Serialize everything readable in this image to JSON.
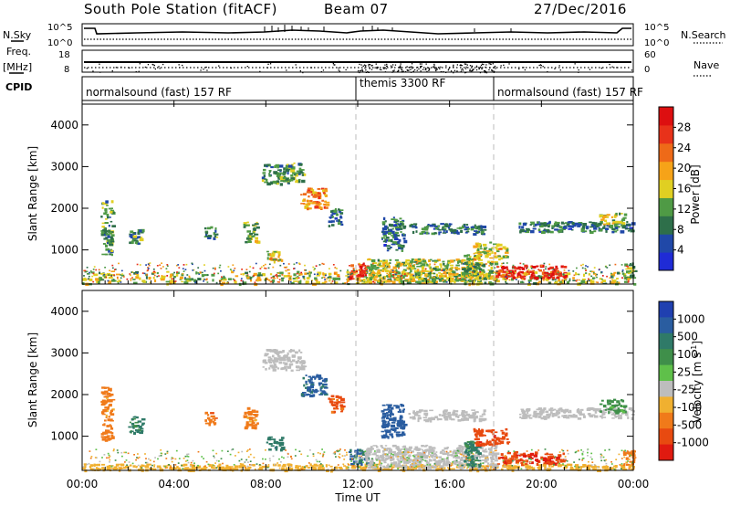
{
  "header": {
    "station": "South Pole Station (fitACF)",
    "beam": "Beam 07",
    "date": "27/Dec/2016"
  },
  "side_labels": {
    "nsky": "N.Sky",
    "freq_1": "Freq.",
    "freq_2": "[MHz]",
    "cpid": "CPID",
    "nsearch": "N.Search",
    "nave": "Nave"
  },
  "top_panels": {
    "nsky_ticks": [
      "10^5",
      "10^0"
    ],
    "nsearch_ticks": [
      "10^5",
      "10^0"
    ],
    "freq_ticks": [
      "18",
      "8"
    ],
    "nave_ticks": [
      "60",
      "0"
    ]
  },
  "cpid_segments": [
    {
      "label": "normalsound (fast) 157 RF",
      "start": 0,
      "end": 12
    },
    {
      "label": "themis 3300 RF",
      "start": 12,
      "end": 18
    },
    {
      "label": "normalsound (fast) 157 RF",
      "start": 18,
      "end": 24
    }
  ],
  "axes": {
    "xlabel": "Time UT",
    "ylabel_left": "Slant Range [km]",
    "x_ticks": [
      "00:00",
      "04:00",
      "08:00",
      "12:00",
      "16:00",
      "20:00",
      "00:00"
    ],
    "y_ticks": [
      "1000",
      "2000",
      "3000",
      "4000"
    ]
  },
  "power_colorbar": {
    "label": "Power [dB]",
    "ticks": [
      "4",
      "8",
      "12",
      "16",
      "20",
      "24",
      "28"
    ],
    "colors": [
      "#1f2bd6",
      "#2048a8",
      "#2e6f4a",
      "#4f9a45",
      "#e0cf22",
      "#f6a318",
      "#ee6a18",
      "#e8321a",
      "#dd0f10"
    ]
  },
  "velocity_colorbar": {
    "label_text": "Velocity [m s",
    "label_exp": "-1",
    "label_close": "]",
    "ticks": [
      "1000",
      "500",
      "100",
      "25",
      "-25",
      "-100",
      "-500",
      "-1000"
    ],
    "colors": [
      "#2040b0",
      "#2a5da0",
      "#2f7a68",
      "#3f8f4a",
      "#5fc04a",
      "#bdbdbd",
      "#f0b030",
      "#f07a1a",
      "#e84a10",
      "#e01a10"
    ]
  },
  "chart_data": {
    "type": "heatmap",
    "x_range_hours": [
      0,
      24
    ],
    "y_range_km": [
      180,
      4500
    ],
    "panels": [
      {
        "name": "Power",
        "unit": "dB",
        "color_range": [
          0,
          30
        ],
        "regions": [
          {
            "t0": 0.0,
            "t1": 24.0,
            "r0": 200,
            "r1": 500,
            "value": 14
          },
          {
            "t0": 0.8,
            "t1": 1.3,
            "r0": 900,
            "r1": 2200,
            "value": 10
          },
          {
            "t0": 2.0,
            "t1": 2.6,
            "r0": 1100,
            "r1": 1500,
            "value": 9
          },
          {
            "t0": 5.3,
            "t1": 5.8,
            "r0": 1300,
            "r1": 1600,
            "value": 10
          },
          {
            "t0": 7.0,
            "t1": 7.6,
            "r0": 1200,
            "r1": 1700,
            "value": 12
          },
          {
            "t0": 8.0,
            "t1": 8.7,
            "r0": 700,
            "r1": 1000,
            "value": 16
          },
          {
            "t0": 7.8,
            "t1": 9.6,
            "r0": 2600,
            "r1": 3100,
            "value": 10
          },
          {
            "t0": 9.5,
            "t1": 10.6,
            "r0": 2000,
            "r1": 2500,
            "value": 20
          },
          {
            "t0": 10.7,
            "t1": 11.3,
            "r0": 1600,
            "r1": 2000,
            "value": 8
          },
          {
            "t0": 11.6,
            "t1": 12.4,
            "r0": 350,
            "r1": 700,
            "value": 26
          },
          {
            "t0": 12.3,
            "t1": 18.0,
            "r0": 250,
            "r1": 800,
            "value": 14
          },
          {
            "t0": 13.0,
            "t1": 14.0,
            "r0": 1000,
            "r1": 1800,
            "value": 8
          },
          {
            "t0": 16.5,
            "t1": 17.3,
            "r0": 300,
            "r1": 900,
            "value": 12
          },
          {
            "t0": 18.0,
            "t1": 21.0,
            "r0": 350,
            "r1": 650,
            "value": 27
          },
          {
            "t0": 17.0,
            "t1": 18.5,
            "r0": 800,
            "r1": 1200,
            "value": 16
          },
          {
            "t0": 14.2,
            "t1": 17.5,
            "r0": 1400,
            "r1": 1650,
            "value": 8
          },
          {
            "t0": 19.0,
            "t1": 24.0,
            "r0": 1450,
            "r1": 1700,
            "value": 8
          },
          {
            "t0": 22.5,
            "t1": 23.6,
            "r0": 1600,
            "r1": 1900,
            "value": 14
          },
          {
            "t0": 23.5,
            "t1": 24.0,
            "r0": 300,
            "r1": 700,
            "value": 12
          }
        ]
      },
      {
        "name": "Velocity",
        "unit": "m s-1",
        "color_range": [
          -1000,
          1000
        ],
        "regions": [
          {
            "t0": 0.0,
            "t1": 24.0,
            "r0": 200,
            "r1": 350,
            "value": -60
          },
          {
            "t0": 0.8,
            "t1": 1.3,
            "r0": 900,
            "r1": 2200,
            "value": -150
          },
          {
            "t0": 2.0,
            "t1": 2.6,
            "r0": 1100,
            "r1": 1500,
            "value": 300
          },
          {
            "t0": 5.3,
            "t1": 5.8,
            "r0": 1300,
            "r1": 1600,
            "value": -200
          },
          {
            "t0": 7.0,
            "t1": 7.6,
            "r0": 1200,
            "r1": 1700,
            "value": -150
          },
          {
            "t0": 8.0,
            "t1": 8.7,
            "r0": 700,
            "r1": 1000,
            "value": 400
          },
          {
            "t0": 7.8,
            "t1": 9.6,
            "r0": 2600,
            "r1": 3100,
            "value": 0
          },
          {
            "t0": 9.5,
            "t1": 10.6,
            "r0": 2000,
            "r1": 2500,
            "value": 600
          },
          {
            "t0": 10.7,
            "t1": 11.3,
            "r0": 1600,
            "r1": 2000,
            "value": -300
          },
          {
            "t0": 11.6,
            "t1": 12.4,
            "r0": 350,
            "r1": 700,
            "value": 500
          },
          {
            "t0": 12.3,
            "t1": 18.0,
            "r0": 250,
            "r1": 800,
            "value": 0
          },
          {
            "t0": 13.0,
            "t1": 14.0,
            "r0": 1000,
            "r1": 1800,
            "value": 700
          },
          {
            "t0": 16.5,
            "t1": 17.3,
            "r0": 300,
            "r1": 900,
            "value": 300
          },
          {
            "t0": 18.0,
            "t1": 21.0,
            "r0": 350,
            "r1": 650,
            "value": -450
          },
          {
            "t0": 17.0,
            "t1": 18.5,
            "r0": 800,
            "r1": 1200,
            "value": -400
          },
          {
            "t0": 14.2,
            "t1": 17.5,
            "r0": 1400,
            "r1": 1650,
            "value": 0
          },
          {
            "t0": 19.0,
            "t1": 24.0,
            "r0": 1450,
            "r1": 1700,
            "value": 0
          },
          {
            "t0": 22.5,
            "t1": 23.6,
            "r0": 1600,
            "r1": 1900,
            "value": 150
          },
          {
            "t0": 23.5,
            "t1": 24.0,
            "r0": 300,
            "r1": 700,
            "value": -150
          }
        ]
      }
    ]
  }
}
